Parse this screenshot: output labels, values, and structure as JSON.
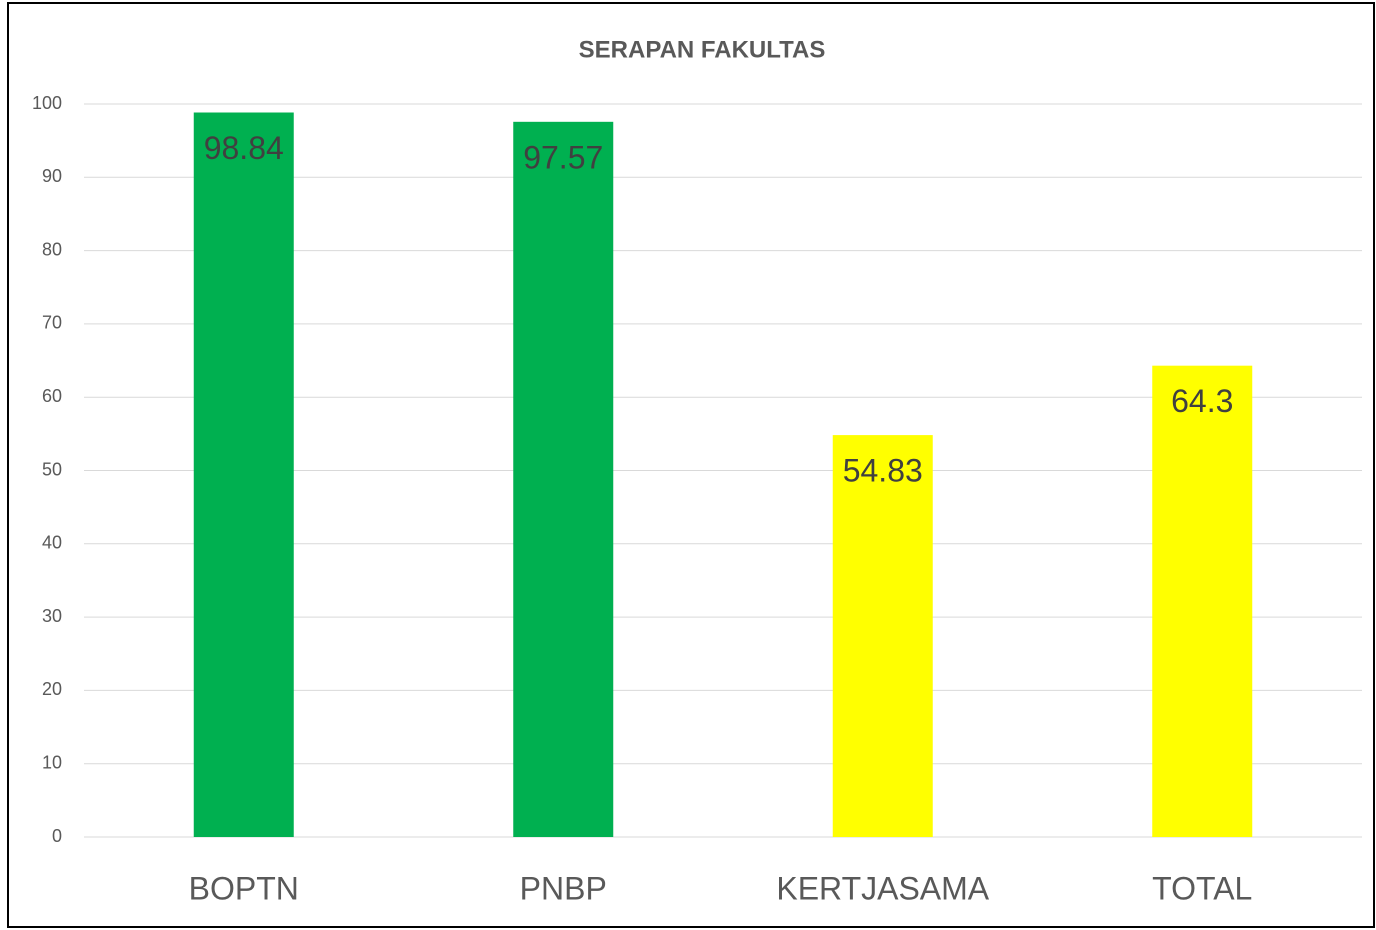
{
  "chart_data": {
    "type": "bar",
    "title": "SERAPAN FAKULTAS",
    "categories": [
      "BOPTN",
      "PNBP",
      "KERTJASAMA",
      "TOTAL"
    ],
    "values": [
      98.84,
      97.57,
      54.83,
      64.3
    ],
    "colors": [
      "#00b050",
      "#00b050",
      "#ffff00",
      "#ffff00"
    ],
    "ylim": [
      0,
      100
    ],
    "yticks": [
      0,
      10,
      20,
      30,
      40,
      50,
      60,
      70,
      80,
      90,
      100
    ],
    "grid": true
  }
}
